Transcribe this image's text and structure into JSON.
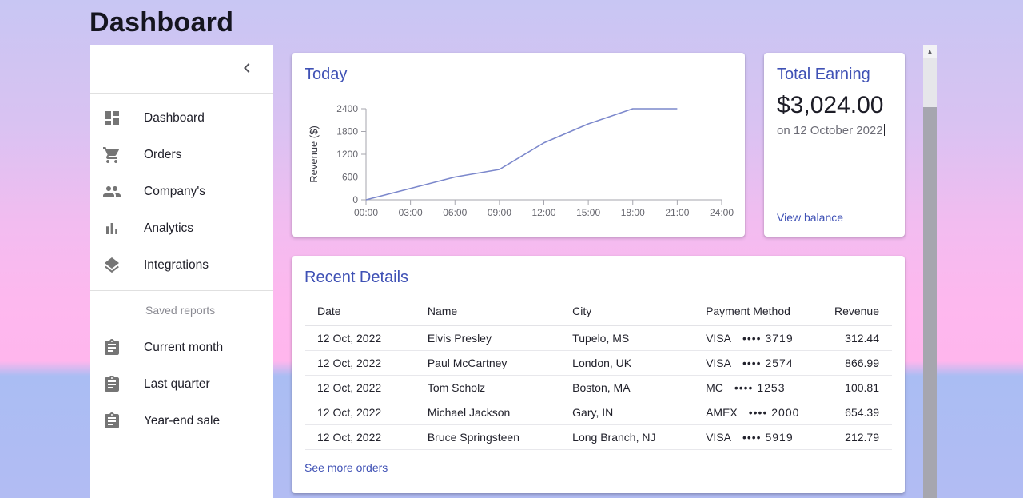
{
  "page": {
    "title": "Dashboard"
  },
  "colors": {
    "primary": "#3f51b5",
    "chart_line": "#7c88cc",
    "background_top": "#c8c6f3",
    "background_pink": "#feb7ee",
    "background_blue": "#aabdf3"
  },
  "sidebar": {
    "collapse_icon": "chevron-left-icon",
    "items": [
      {
        "label": "Dashboard",
        "icon": "dashboard-icon"
      },
      {
        "label": "Orders",
        "icon": "cart-icon"
      },
      {
        "label": "Company's",
        "icon": "people-icon"
      },
      {
        "label": "Analytics",
        "icon": "bar-chart-icon"
      },
      {
        "label": "Integrations",
        "icon": "layers-icon"
      }
    ],
    "section_label": "Saved reports",
    "reports": [
      {
        "label": "Current month",
        "icon": "assignment-icon"
      },
      {
        "label": "Last quarter",
        "icon": "assignment-icon"
      },
      {
        "label": "Year-end sale",
        "icon": "assignment-icon"
      }
    ]
  },
  "today_card": {
    "title": "Today"
  },
  "chart_data": {
    "type": "line",
    "title": "Today",
    "xlabel": "",
    "ylabel": "Revenue ($)",
    "x": [
      "00:00",
      "03:00",
      "06:00",
      "09:00",
      "12:00",
      "15:00",
      "18:00",
      "21:00",
      "24:00"
    ],
    "values": [
      0,
      300,
      600,
      800,
      1500,
      2000,
      2400,
      2400,
      null
    ],
    "yticks": [
      0,
      600,
      1200,
      1800,
      2400
    ],
    "ylim": [
      0,
      2400
    ],
    "line_color": "#7c88cc",
    "axis_color": "#a6a6ae",
    "tick_text_color": "#66666e",
    "grid": false,
    "legend": "none"
  },
  "earning_card": {
    "title": "Total Earning",
    "amount": "$3,024.00",
    "date_note": "on 12 October 2022",
    "link": "View balance"
  },
  "orders_card": {
    "title": "Recent Details",
    "columns": [
      "Date",
      "Name",
      "City",
      "Payment Method",
      "Revenue"
    ],
    "rows": [
      {
        "date": "12 Oct, 2022",
        "name": "Elvis Presley",
        "city": "Tupelo, MS",
        "payment_type": "VISA",
        "payment_masked": "•••• 3719",
        "revenue": "312.44"
      },
      {
        "date": "12 Oct, 2022",
        "name": "Paul McCartney",
        "city": "London, UK",
        "payment_type": "VISA",
        "payment_masked": "•••• 2574",
        "revenue": "866.99"
      },
      {
        "date": "12 Oct, 2022",
        "name": "Tom Scholz",
        "city": "Boston, MA",
        "payment_type": "MC",
        "payment_masked": "•••• 1253",
        "revenue": "100.81"
      },
      {
        "date": "12 Oct, 2022",
        "name": "Michael Jackson",
        "city": "Gary, IN",
        "payment_type": "AMEX",
        "payment_masked": "•••• 2000",
        "revenue": "654.39"
      },
      {
        "date": "12 Oct, 2022",
        "name": "Bruce Springsteen",
        "city": "Long Branch, NJ",
        "payment_type": "VISA",
        "payment_masked": "•••• 5919",
        "revenue": "212.79"
      }
    ],
    "link": "See more orders"
  },
  "scrollbar": {
    "up_arrow": "▲"
  }
}
